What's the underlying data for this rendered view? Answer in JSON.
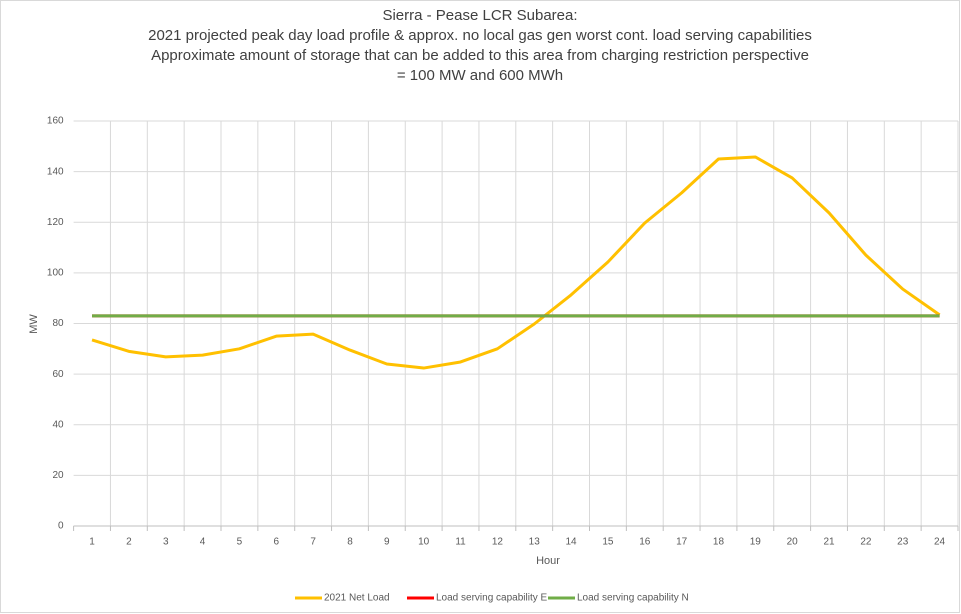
{
  "chart_data": {
    "type": "line",
    "title": [
      "Sierra - Pease LCR Subarea:",
      "2021 projected peak day load profile & approx. no local gas gen worst cont. load serving capabilities",
      "Approximate amount of storage that can be added to this area from charging restriction perspective",
      "= 100 MW and 600 MWh"
    ],
    "x_label": "Hour",
    "y_label": "MW",
    "categories": [
      "1",
      "2",
      "3",
      "4",
      "5",
      "6",
      "7",
      "8",
      "9",
      "10",
      "11",
      "12",
      "13",
      "14",
      "15",
      "16",
      "17",
      "18",
      "19",
      "20",
      "21",
      "22",
      "23",
      "24"
    ],
    "series": [
      {
        "name": "2021 Net Load",
        "color": "#ffc000",
        "values": [
          73.5,
          69,
          66.8,
          67.5,
          70,
          75,
          75.8,
          69.5,
          64,
          62.4,
          64.8,
          70,
          79.8,
          91.3,
          104.3,
          119.7,
          131.6,
          145,
          145.8,
          137.5,
          123.7,
          107,
          93.6,
          83.4
        ]
      },
      {
        "name": "Load serving capability E",
        "color": "#ff0000",
        "values": [
          83,
          83,
          83,
          83,
          83,
          83,
          83,
          83,
          83,
          83,
          83,
          83,
          83,
          83,
          83,
          83,
          83,
          83,
          83,
          83,
          83,
          83,
          83,
          83
        ]
      },
      {
        "name": "Load serving capability N",
        "color": "#70ad47",
        "values": [
          83,
          83,
          83,
          83,
          83,
          83,
          83,
          83,
          83,
          83,
          83,
          83,
          83,
          83,
          83,
          83,
          83,
          83,
          83,
          83,
          83,
          83,
          83,
          83
        ]
      }
    ],
    "ylim": [
      0,
      160
    ],
    "yticks": [
      0,
      20,
      40,
      60,
      80,
      100,
      120,
      140,
      160
    ],
    "grid": true,
    "legend": "bottom"
  }
}
